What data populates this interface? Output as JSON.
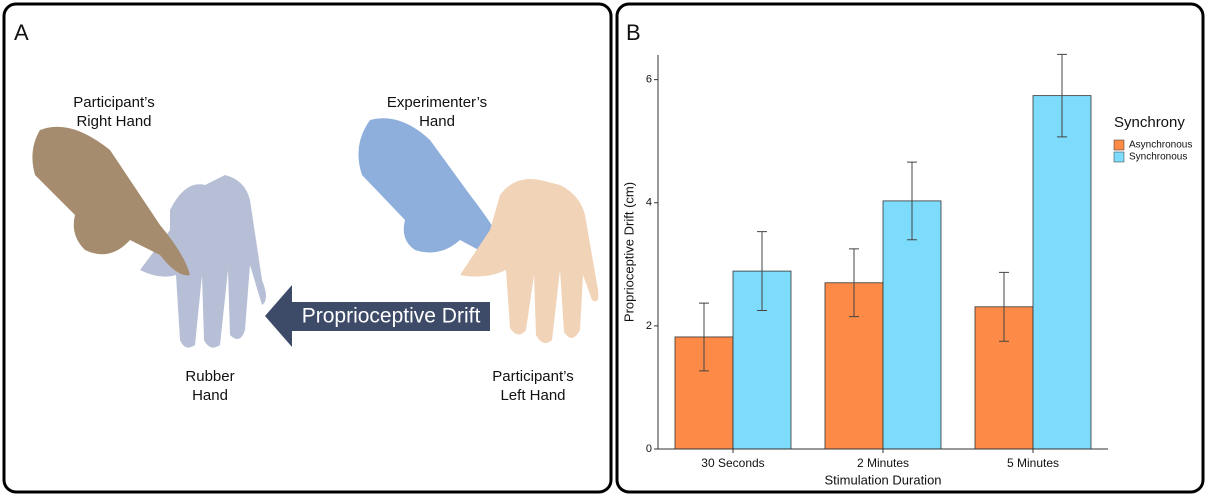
{
  "panel_a": {
    "letter": "A",
    "labels": {
      "right_hand": [
        "Participant’s",
        "Right Hand"
      ],
      "experimenter_hand": [
        "Experimenter’s",
        "Hand"
      ],
      "rubber_hand": [
        "Rubber",
        "Hand"
      ],
      "left_hand": [
        "Participant’s",
        "Left Hand"
      ]
    },
    "arrow_label": "Proprioceptive Drift"
  },
  "panel_b": {
    "letter": "B"
  },
  "chart_data": {
    "type": "bar",
    "categories": [
      "30 Seconds",
      "2 Minutes",
      "5 Minutes"
    ],
    "series": [
      {
        "name": "Asynchronous",
        "color": "#fd8a47",
        "values": [
          1.82,
          2.7,
          2.31
        ],
        "errors": [
          0.55,
          0.55,
          0.56
        ]
      },
      {
        "name": "Synchronous",
        "color": "#7ddcfb",
        "values": [
          2.89,
          4.03,
          5.74
        ],
        "errors": [
          0.64,
          0.63,
          0.67
        ]
      }
    ],
    "ylim": [
      0,
      6.4
    ],
    "yticks": [
      0,
      2,
      4,
      6
    ],
    "x_label": "Stimulation Duration",
    "y_label": "Proprioceptive Drift (cm)",
    "legend_title": "Synchrony",
    "legend_position": "right"
  }
}
